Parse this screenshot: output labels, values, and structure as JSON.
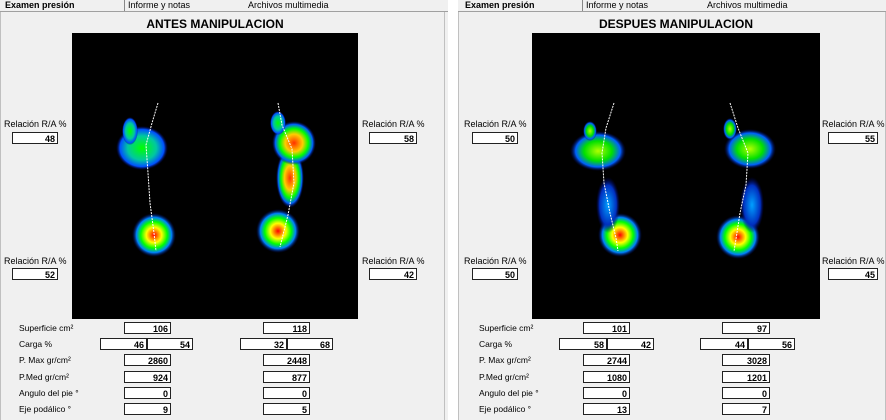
{
  "left": {
    "tabs": [
      "Examen presión",
      "Informe y notas",
      "Archivos multimedia"
    ],
    "title": "ANTES MANIPULACION",
    "ra_label": "Relación R/A %",
    "ra": {
      "top_left": "48",
      "top_right": "58",
      "bottom_left": "52",
      "bottom_right": "42"
    },
    "rows": {
      "superficie": {
        "label": "Superficie cm²",
        "l": "106",
        "r": "118"
      },
      "carga": {
        "label": "Carga %",
        "l1": "46",
        "l2": "54",
        "r1": "32",
        "r2": "68"
      },
      "pmax": {
        "label": "P. Max gr/cm²",
        "l": "2860",
        "r": "2448"
      },
      "pmed": {
        "label": "P.Med gr/cm²",
        "l": "924",
        "r": "877"
      },
      "angulo": {
        "label": "Angulo del pie °",
        "l": "0",
        "r": "0"
      },
      "eje": {
        "label": "Eje podálico °",
        "l": "9",
        "r": "5"
      }
    }
  },
  "right": {
    "tabs": [
      "Examen presión",
      "Informe y notas",
      "Archivos multimedia"
    ],
    "title": "DESPUES MANIPULACION",
    "ra_label": "Relación R/A %",
    "ra": {
      "top_left": "50",
      "top_right": "55",
      "bottom_left": "50",
      "bottom_right": "45"
    },
    "rows": {
      "superficie": {
        "label": "Superficie cm²",
        "l": "101",
        "r": "97"
      },
      "carga": {
        "label": "Carga %",
        "l1": "58",
        "l2": "42",
        "r1": "44",
        "r2": "56"
      },
      "pmax": {
        "label": "P. Max gr/cm²",
        "l": "2744",
        "r": "3028"
      },
      "pmed": {
        "label": "P.Med gr/cm²",
        "l": "1080",
        "r": "1201"
      },
      "angulo": {
        "label": "Angulo del pie °",
        "l": "0",
        "r": "0"
      },
      "eje": {
        "label": "Eje podálico °",
        "l": "13",
        "r": "7"
      }
    }
  },
  "colors": {
    "hot": "#ff0000",
    "warm": "#ffff00",
    "mid": "#00ff00",
    "cool": "#00a0ff",
    "cold": "#0000c0"
  }
}
